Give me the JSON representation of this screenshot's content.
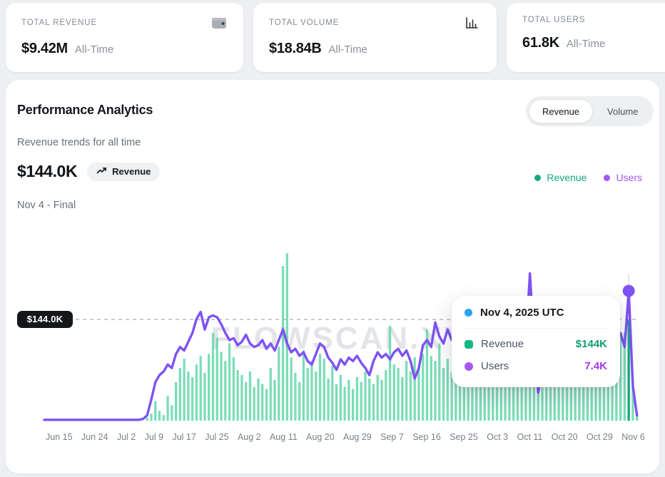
{
  "stat_cards": [
    {
      "label": "TOTAL REVENUE",
      "value": "$9.42M",
      "period": "All-Time",
      "icon": "wallet-icon"
    },
    {
      "label": "TOTAL VOLUME",
      "value": "$18.84B",
      "period": "All-Time",
      "icon": "bar-chart-icon"
    },
    {
      "label": "TOTAL USERS",
      "value": "61.8K",
      "period": "All-Time",
      "icon": ""
    }
  ],
  "panel": {
    "title": "Performance Analytics",
    "subtitle": "Revenue trends for all time",
    "highlight_value": "$144.0K",
    "highlight_badge": "Revenue",
    "period_label": "Nov 4 - Final",
    "toggle": {
      "options": [
        "Revenue",
        "Volume"
      ],
      "active": "Revenue"
    },
    "legend": [
      {
        "label": "Revenue",
        "color": "#12a87e"
      },
      {
        "label": "Users",
        "color": "#a554f2"
      }
    ],
    "watermark": "FLOWSCAN.XYZ"
  },
  "tooltip": {
    "date": "Nov 4, 2025 UTC",
    "header_dot_color": "#2aa4f4",
    "rows": [
      {
        "label": "Revenue",
        "value": "$144K",
        "color_marker": "#12b981",
        "color_value": "#0d9f6e",
        "marker": "square"
      },
      {
        "label": "Users",
        "value": "7.4K",
        "color_marker": "#a855f7",
        "color_value": "#a637f2",
        "marker": "circle"
      }
    ]
  },
  "chart_data": {
    "type": "bar+line",
    "title": "Performance Analytics - Revenue trends for all time",
    "x_start": "Jun 15",
    "x_end": "Nov 6",
    "x_step": "1 day",
    "x_ticks": {
      "labels": [
        "Jun 15",
        "Jun 24",
        "Jul 2",
        "Jul 9",
        "Jul 17",
        "Jul 25",
        "Aug 2",
        "Aug 11",
        "Aug 20",
        "Aug 29",
        "Sep 7",
        "Sep 16",
        "Sep 25",
        "Oct 3",
        "Oct 11",
        "Oct 20",
        "Oct 29",
        "Nov 6"
      ],
      "indices": [
        0,
        9,
        17,
        24,
        32,
        40,
        48,
        57,
        66,
        75,
        84,
        93,
        102,
        110,
        118,
        127,
        136,
        144
      ]
    },
    "threshold": {
      "value": 144,
      "label": "$144.0K",
      "unit": "K USD"
    },
    "highlight_index": 142,
    "highlight_point": {
      "date": "Nov 4, 2025 UTC",
      "revenue_k_usd": 144,
      "users_k": 7.4
    },
    "series": [
      {
        "name": "Revenue",
        "type": "bar",
        "unit": "K USD",
        "color": "#57d3a4",
        "highlight_color": "#0fa97c",
        "values": [
          0,
          0,
          0,
          0,
          0,
          0,
          0,
          0,
          0,
          0,
          0,
          0,
          0,
          0,
          0,
          0,
          0,
          0,
          0,
          0,
          0,
          0,
          0,
          0,
          0,
          4,
          10,
          28,
          14,
          8,
          35,
          22,
          55,
          75,
          88,
          70,
          62,
          80,
          92,
          68,
          95,
          125,
          118,
          98,
          85,
          110,
          90,
          72,
          65,
          55,
          70,
          48,
          60,
          52,
          45,
          75,
          58,
          105,
          220,
          238,
          90,
          68,
          55,
          100,
          75,
          85,
          70,
          95,
          88,
          60,
          78,
          52,
          65,
          48,
          58,
          45,
          62,
          55,
          70,
          60,
          52,
          65,
          58,
          72,
          135,
          80,
          75,
          62,
          85,
          70,
          90,
          78,
          95,
          130,
          92,
          85,
          110,
          75,
          88,
          70,
          82,
          60,
          72,
          65,
          80,
          70,
          85,
          75,
          68,
          78,
          82,
          74,
          88,
          70,
          65,
          80,
          72,
          85,
          90,
          78,
          85,
          70,
          92,
          80,
          75,
          88,
          82,
          78,
          85,
          90,
          72,
          80,
          95,
          85,
          92,
          88,
          95,
          100,
          105,
          112,
          118,
          126,
          144,
          58,
          12
        ]
      },
      {
        "name": "Users",
        "type": "line",
        "unit": "K users",
        "color": "#7e53f3",
        "values": [
          0.05,
          0.05,
          0.05,
          0.05,
          0.05,
          0.05,
          0.05,
          0.05,
          0.05,
          0.05,
          0.05,
          0.05,
          0.05,
          0.05,
          0.05,
          0.05,
          0.05,
          0.05,
          0.05,
          0.05,
          0.05,
          0.05,
          0.05,
          0.05,
          0.1,
          0.3,
          1.2,
          2.2,
          2.6,
          2.8,
          3.2,
          3.0,
          3.8,
          4.2,
          4.0,
          4.5,
          5.0,
          5.8,
          6.2,
          5.2,
          5.9,
          6.0,
          5.9,
          5.5,
          5.0,
          4.6,
          4.7,
          4.3,
          4.5,
          4.9,
          4.4,
          4.2,
          4.3,
          4.6,
          4.1,
          4.4,
          4.0,
          4.6,
          5.2,
          4.4,
          3.9,
          4.1,
          3.7,
          3.9,
          3.4,
          3.2,
          3.8,
          4.4,
          4.2,
          3.6,
          3.3,
          2.9,
          3.5,
          3.2,
          3.6,
          3.4,
          3.7,
          3.3,
          3.0,
          2.6,
          3.4,
          3.9,
          3.6,
          3.8,
          3.5,
          3.9,
          4.1,
          3.7,
          4.0,
          3.4,
          2.4,
          3.0,
          4.3,
          4.6,
          4.2,
          5.6,
          4.8,
          4.4,
          5.2,
          4.6,
          4.9,
          4.4,
          4.6,
          4.2,
          4.8,
          4.4,
          4.0,
          4.5,
          4.2,
          4.6,
          4.4,
          4.7,
          4.3,
          4.6,
          4.1,
          4.4,
          4.8,
          4.5,
          8.4,
          4.2,
          1.6,
          3.0,
          4.6,
          4.4,
          4.1,
          4.5,
          4.3,
          4.7,
          4.3,
          4.9,
          4.5,
          4.2,
          5.0,
          4.6,
          5.3,
          4.8,
          5.6,
          4.8,
          5.2,
          4.4,
          5.0,
          4.2,
          7.4,
          2.0,
          0.3
        ]
      }
    ],
    "legend_position": "top-right",
    "grid": "off",
    "y_axis": "hidden"
  }
}
